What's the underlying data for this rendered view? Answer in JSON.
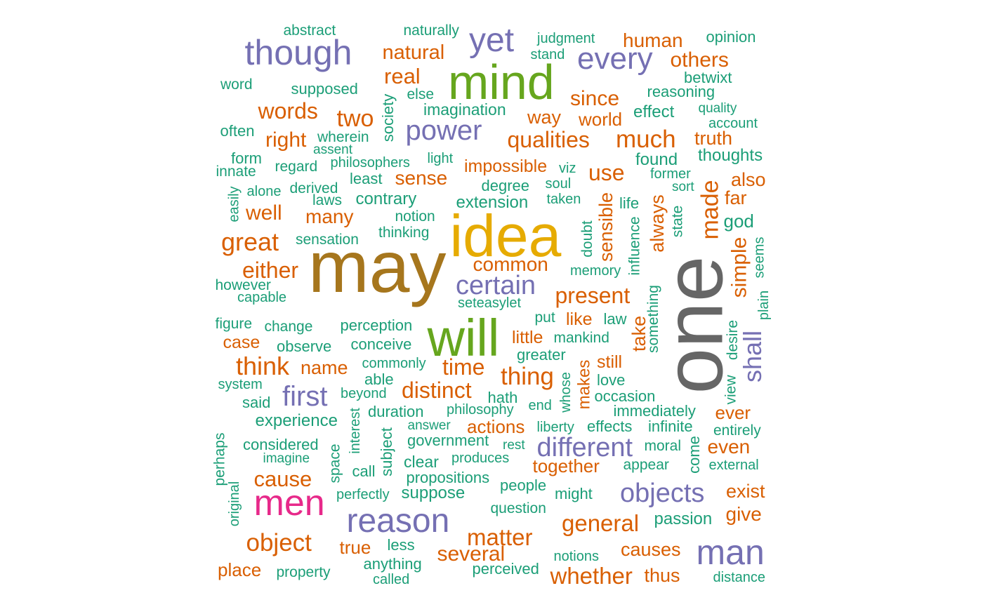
{
  "palette": {
    "teal": "#1b9e77",
    "orange": "#d95f02",
    "purple": "#7570b3",
    "pink": "#e7298a",
    "green": "#66a61e",
    "gold": "#e6ab02",
    "brown": "#a6761d",
    "gray": "#666666"
  },
  "words": [
    {
      "text": "one",
      "color": "gray",
      "rank": 1,
      "vertical": true
    },
    {
      "text": "may",
      "color": "brown",
      "rank": 2,
      "vertical": false
    },
    {
      "text": "idea",
      "color": "gold",
      "rank": 3,
      "vertical": false
    },
    {
      "text": "will",
      "color": "green",
      "rank": 4,
      "vertical": false
    },
    {
      "text": "mind",
      "color": "green",
      "rank": 5,
      "vertical": false
    },
    {
      "text": "men",
      "color": "pink",
      "rank": 6,
      "vertical": false
    },
    {
      "text": "though",
      "color": "purple",
      "rank": 7,
      "vertical": false
    },
    {
      "text": "reason",
      "color": "purple",
      "rank": 8,
      "vertical": false
    },
    {
      "text": "man",
      "color": "purple",
      "rank": 9,
      "vertical": false
    },
    {
      "text": "yet",
      "color": "purple",
      "rank": 10,
      "vertical": false
    },
    {
      "text": "every",
      "color": "purple",
      "rank": 11,
      "vertical": false
    },
    {
      "text": "power",
      "color": "purple",
      "rank": 12,
      "vertical": false
    },
    {
      "text": "different",
      "color": "purple",
      "rank": 13,
      "vertical": false
    },
    {
      "text": "objects",
      "color": "purple",
      "rank": 14,
      "vertical": false
    },
    {
      "text": "certain",
      "color": "purple",
      "rank": 15,
      "vertical": false
    },
    {
      "text": "first",
      "color": "purple",
      "rank": 16,
      "vertical": false
    },
    {
      "text": "shall",
      "color": "purple",
      "rank": 17,
      "vertical": true
    },
    {
      "text": "object",
      "color": "orange",
      "rank": 18,
      "vertical": false
    },
    {
      "text": "general",
      "color": "orange",
      "rank": 19,
      "vertical": false
    },
    {
      "text": "whether",
      "color": "orange",
      "rank": 20,
      "vertical": false
    },
    {
      "text": "matter",
      "color": "orange",
      "rank": 21,
      "vertical": false
    },
    {
      "text": "great",
      "color": "orange",
      "rank": 22,
      "vertical": false
    },
    {
      "text": "think",
      "color": "orange",
      "rank": 23,
      "vertical": false
    },
    {
      "text": "much",
      "color": "orange",
      "rank": 24,
      "vertical": false
    },
    {
      "text": "thing",
      "color": "orange",
      "rank": 25,
      "vertical": false
    },
    {
      "text": "made",
      "color": "orange",
      "rank": 26,
      "vertical": true
    },
    {
      "text": "present",
      "color": "orange",
      "rank": 27,
      "vertical": false
    },
    {
      "text": "two",
      "color": "orange",
      "rank": 28,
      "vertical": false
    },
    {
      "text": "distinct",
      "color": "orange",
      "rank": 29,
      "vertical": false
    },
    {
      "text": "qualities",
      "color": "orange",
      "rank": 30,
      "vertical": false
    },
    {
      "text": "use",
      "color": "orange",
      "rank": 31,
      "vertical": false
    },
    {
      "text": "time",
      "color": "orange",
      "rank": 32,
      "vertical": false
    },
    {
      "text": "either",
      "color": "orange",
      "rank": 33,
      "vertical": false
    },
    {
      "text": "cause",
      "color": "orange",
      "rank": 34,
      "vertical": false
    },
    {
      "text": "several",
      "color": "orange",
      "rank": 35,
      "vertical": false
    },
    {
      "text": "words",
      "color": "orange",
      "rank": 36,
      "vertical": false
    },
    {
      "text": "others",
      "color": "orange",
      "rank": 37,
      "vertical": false
    },
    {
      "text": "simple",
      "color": "orange",
      "rank": 38,
      "vertical": true
    },
    {
      "text": "natural",
      "color": "orange",
      "rank": 39,
      "vertical": false
    },
    {
      "text": "real",
      "color": "orange",
      "rank": 40,
      "vertical": false
    },
    {
      "text": "since",
      "color": "orange",
      "rank": 41,
      "vertical": false
    },
    {
      "text": "human",
      "color": "orange",
      "rank": 42,
      "vertical": false
    },
    {
      "text": "sense",
      "color": "orange",
      "rank": 43,
      "vertical": false
    },
    {
      "text": "impossible",
      "color": "orange",
      "rank": 44,
      "vertical": false
    },
    {
      "text": "common",
      "color": "orange",
      "rank": 45,
      "vertical": false
    },
    {
      "text": "well",
      "color": "orange",
      "rank": 46,
      "vertical": false
    },
    {
      "text": "many",
      "color": "orange",
      "rank": 47,
      "vertical": false
    },
    {
      "text": "right",
      "color": "orange",
      "rank": 48,
      "vertical": false
    },
    {
      "text": "truth",
      "color": "orange",
      "rank": 49,
      "vertical": false
    },
    {
      "text": "way",
      "color": "orange",
      "rank": 50,
      "vertical": false
    },
    {
      "text": "world",
      "color": "orange",
      "rank": 51,
      "vertical": false
    },
    {
      "text": "also",
      "color": "orange",
      "rank": 52,
      "vertical": false
    },
    {
      "text": "far",
      "color": "orange",
      "rank": 53,
      "vertical": false
    },
    {
      "text": "always",
      "color": "orange",
      "rank": 54,
      "vertical": true
    },
    {
      "text": "sensible",
      "color": "orange",
      "rank": 55,
      "vertical": true
    },
    {
      "text": "take",
      "color": "orange",
      "rank": 56,
      "vertical": true
    },
    {
      "text": "makes",
      "color": "orange",
      "rank": 57,
      "vertical": true
    },
    {
      "text": "name",
      "color": "orange",
      "rank": 58,
      "vertical": false
    },
    {
      "text": "case",
      "color": "orange",
      "rank": 59,
      "vertical": false
    },
    {
      "text": "little",
      "color": "orange",
      "rank": 60,
      "vertical": false
    },
    {
      "text": "like",
      "color": "orange",
      "rank": 61,
      "vertical": false
    },
    {
      "text": "still",
      "color": "orange",
      "rank": 62,
      "vertical": false
    },
    {
      "text": "actions",
      "color": "orange",
      "rank": 63,
      "vertical": false
    },
    {
      "text": "together",
      "color": "orange",
      "rank": 64,
      "vertical": false
    },
    {
      "text": "ever",
      "color": "orange",
      "rank": 65,
      "vertical": false
    },
    {
      "text": "even",
      "color": "orange",
      "rank": 66,
      "vertical": false
    },
    {
      "text": "exist",
      "color": "orange",
      "rank": 67,
      "vertical": false
    },
    {
      "text": "give",
      "color": "orange",
      "rank": 68,
      "vertical": false
    },
    {
      "text": "true",
      "color": "orange",
      "rank": 69,
      "vertical": false
    },
    {
      "text": "place",
      "color": "orange",
      "rank": 70,
      "vertical": false
    },
    {
      "text": "causes",
      "color": "orange",
      "rank": 71,
      "vertical": false
    },
    {
      "text": "thus",
      "color": "orange",
      "rank": 72,
      "vertical": false
    },
    {
      "text": "abstract",
      "color": "teal",
      "rank": 73,
      "vertical": false
    },
    {
      "text": "naturally",
      "color": "teal",
      "rank": 74,
      "vertical": false
    },
    {
      "text": "judgment",
      "color": "teal",
      "rank": 75,
      "vertical": false
    },
    {
      "text": "opinion",
      "color": "teal",
      "rank": 76,
      "vertical": false
    },
    {
      "text": "stand",
      "color": "teal",
      "rank": 77,
      "vertical": false
    },
    {
      "text": "word",
      "color": "teal",
      "rank": 78,
      "vertical": false
    },
    {
      "text": "supposed",
      "color": "teal",
      "rank": 79,
      "vertical": false
    },
    {
      "text": "else",
      "color": "teal",
      "rank": 80,
      "vertical": false
    },
    {
      "text": "betwixt",
      "color": "teal",
      "rank": 81,
      "vertical": false
    },
    {
      "text": "reasoning",
      "color": "teal",
      "rank": 82,
      "vertical": false
    },
    {
      "text": "imagination",
      "color": "teal",
      "rank": 83,
      "vertical": false
    },
    {
      "text": "effect",
      "color": "teal",
      "rank": 84,
      "vertical": false
    },
    {
      "text": "quality",
      "color": "teal",
      "rank": 85,
      "vertical": false
    },
    {
      "text": "account",
      "color": "teal",
      "rank": 86,
      "vertical": false
    },
    {
      "text": "often",
      "color": "teal",
      "rank": 87,
      "vertical": false
    },
    {
      "text": "wherein",
      "color": "teal",
      "rank": 88,
      "vertical": false
    },
    {
      "text": "assent",
      "color": "teal",
      "rank": 89,
      "vertical": false
    },
    {
      "text": "society",
      "color": "teal",
      "rank": 90,
      "vertical": true
    },
    {
      "text": "thoughts",
      "color": "teal",
      "rank": 91,
      "vertical": false
    },
    {
      "text": "form",
      "color": "teal",
      "rank": 92,
      "vertical": false
    },
    {
      "text": "regard",
      "color": "teal",
      "rank": 93,
      "vertical": false
    },
    {
      "text": "philosophers",
      "color": "teal",
      "rank": 94,
      "vertical": false
    },
    {
      "text": "light",
      "color": "teal",
      "rank": 95,
      "vertical": false
    },
    {
      "text": "found",
      "color": "teal",
      "rank": 96,
      "vertical": false
    },
    {
      "text": "innate",
      "color": "teal",
      "rank": 97,
      "vertical": false
    },
    {
      "text": "viz",
      "color": "teal",
      "rank": 98,
      "vertical": false
    },
    {
      "text": "former",
      "color": "teal",
      "rank": 99,
      "vertical": false
    },
    {
      "text": "least",
      "color": "teal",
      "rank": 100,
      "vertical": false
    },
    {
      "text": "degree",
      "color": "teal",
      "rank": 101,
      "vertical": false
    },
    {
      "text": "soul",
      "color": "teal",
      "rank": 102,
      "vertical": false
    },
    {
      "text": "sort",
      "color": "teal",
      "rank": 103,
      "vertical": false
    },
    {
      "text": "alone",
      "color": "teal",
      "rank": 104,
      "vertical": false
    },
    {
      "text": "derived",
      "color": "teal",
      "rank": 105,
      "vertical": false
    },
    {
      "text": "easily",
      "color": "teal",
      "rank": 106,
      "vertical": true
    },
    {
      "text": "laws",
      "color": "teal",
      "rank": 107,
      "vertical": false
    },
    {
      "text": "contrary",
      "color": "teal",
      "rank": 108,
      "vertical": false
    },
    {
      "text": "taken",
      "color": "teal",
      "rank": 109,
      "vertical": false
    },
    {
      "text": "extension",
      "color": "teal",
      "rank": 110,
      "vertical": false
    },
    {
      "text": "life",
      "color": "teal",
      "rank": 111,
      "vertical": false
    },
    {
      "text": "state",
      "color": "teal",
      "rank": 112,
      "vertical": true
    },
    {
      "text": "god",
      "color": "teal",
      "rank": 113,
      "vertical": false
    },
    {
      "text": "notion",
      "color": "teal",
      "rank": 114,
      "vertical": false
    },
    {
      "text": "thinking",
      "color": "teal",
      "rank": 115,
      "vertical": false
    },
    {
      "text": "sensation",
      "color": "teal",
      "rank": 116,
      "vertical": false
    },
    {
      "text": "doubt",
      "color": "teal",
      "rank": 117,
      "vertical": true
    },
    {
      "text": "influence",
      "color": "teal",
      "rank": 118,
      "vertical": true
    },
    {
      "text": "memory",
      "color": "teal",
      "rank": 119,
      "vertical": false
    },
    {
      "text": "seems",
      "color": "teal",
      "rank": 120,
      "vertical": true
    },
    {
      "text": "however",
      "color": "teal",
      "rank": 121,
      "vertical": false
    },
    {
      "text": "capable",
      "color": "teal",
      "rank": 122,
      "vertical": false
    },
    {
      "text": "seteasylet",
      "color": "teal",
      "rank": 123,
      "vertical": false
    },
    {
      "text": "something",
      "color": "teal",
      "rank": 124,
      "vertical": true
    },
    {
      "text": "plain",
      "color": "teal",
      "rank": 125,
      "vertical": true
    },
    {
      "text": "put",
      "color": "teal",
      "rank": 126,
      "vertical": false
    },
    {
      "text": "law",
      "color": "teal",
      "rank": 127,
      "vertical": false
    },
    {
      "text": "figure",
      "color": "teal",
      "rank": 128,
      "vertical": false
    },
    {
      "text": "change",
      "color": "teal",
      "rank": 129,
      "vertical": false
    },
    {
      "text": "perception",
      "color": "teal",
      "rank": 130,
      "vertical": false
    },
    {
      "text": "mankind",
      "color": "teal",
      "rank": 131,
      "vertical": false
    },
    {
      "text": "desire",
      "color": "teal",
      "rank": 132,
      "vertical": true
    },
    {
      "text": "observe",
      "color": "teal",
      "rank": 133,
      "vertical": false
    },
    {
      "text": "conceive",
      "color": "teal",
      "rank": 134,
      "vertical": false
    },
    {
      "text": "greater",
      "color": "teal",
      "rank": 135,
      "vertical": false
    },
    {
      "text": "commonly",
      "color": "teal",
      "rank": 136,
      "vertical": false
    },
    {
      "text": "whose",
      "color": "teal",
      "rank": 137,
      "vertical": true
    },
    {
      "text": "system",
      "color": "teal",
      "rank": 138,
      "vertical": false
    },
    {
      "text": "able",
      "color": "teal",
      "rank": 139,
      "vertical": false
    },
    {
      "text": "love",
      "color": "teal",
      "rank": 140,
      "vertical": false
    },
    {
      "text": "view",
      "color": "teal",
      "rank": 141,
      "vertical": true
    },
    {
      "text": "said",
      "color": "teal",
      "rank": 142,
      "vertical": false
    },
    {
      "text": "beyond",
      "color": "teal",
      "rank": 143,
      "vertical": false
    },
    {
      "text": "hath",
      "color": "teal",
      "rank": 144,
      "vertical": false
    },
    {
      "text": "occasion",
      "color": "teal",
      "rank": 145,
      "vertical": false
    },
    {
      "text": "duration",
      "color": "teal",
      "rank": 146,
      "vertical": false
    },
    {
      "text": "philosophy",
      "color": "teal",
      "rank": 147,
      "vertical": false
    },
    {
      "text": "end",
      "color": "teal",
      "rank": 148,
      "vertical": false
    },
    {
      "text": "immediately",
      "color": "teal",
      "rank": 149,
      "vertical": false
    },
    {
      "text": "interest",
      "color": "teal",
      "rank": 150,
      "vertical": true
    },
    {
      "text": "experience",
      "color": "teal",
      "rank": 151,
      "vertical": false
    },
    {
      "text": "answer",
      "color": "teal",
      "rank": 152,
      "vertical": false
    },
    {
      "text": "liberty",
      "color": "teal",
      "rank": 153,
      "vertical": false
    },
    {
      "text": "effects",
      "color": "teal",
      "rank": 154,
      "vertical": false
    },
    {
      "text": "infinite",
      "color": "teal",
      "rank": 155,
      "vertical": false
    },
    {
      "text": "perhaps",
      "color": "teal",
      "rank": 156,
      "vertical": true
    },
    {
      "text": "subject",
      "color": "teal",
      "rank": 157,
      "vertical": true
    },
    {
      "text": "entirely",
      "color": "teal",
      "rank": 158,
      "vertical": false
    },
    {
      "text": "government",
      "color": "teal",
      "rank": 159,
      "vertical": false
    },
    {
      "text": "considered",
      "color": "teal",
      "rank": 160,
      "vertical": false
    },
    {
      "text": "rest",
      "color": "teal",
      "rank": 161,
      "vertical": false
    },
    {
      "text": "moral",
      "color": "teal",
      "rank": 162,
      "vertical": false
    },
    {
      "text": "come",
      "color": "teal",
      "rank": 163,
      "vertical": true
    },
    {
      "text": "space",
      "color": "teal",
      "rank": 164,
      "vertical": true
    },
    {
      "text": "imagine",
      "color": "teal",
      "rank": 165,
      "vertical": false
    },
    {
      "text": "produces",
      "color": "teal",
      "rank": 166,
      "vertical": false
    },
    {
      "text": "clear",
      "color": "teal",
      "rank": 167,
      "vertical": false
    },
    {
      "text": "appear",
      "color": "teal",
      "rank": 168,
      "vertical": false
    },
    {
      "text": "external",
      "color": "teal",
      "rank": 169,
      "vertical": false
    },
    {
      "text": "call",
      "color": "teal",
      "rank": 170,
      "vertical": false
    },
    {
      "text": "original",
      "color": "teal",
      "rank": 171,
      "vertical": true
    },
    {
      "text": "propositions",
      "color": "teal",
      "rank": 172,
      "vertical": false
    },
    {
      "text": "people",
      "color": "teal",
      "rank": 173,
      "vertical": false
    },
    {
      "text": "might",
      "color": "teal",
      "rank": 174,
      "vertical": false
    },
    {
      "text": "perfectly",
      "color": "teal",
      "rank": 175,
      "vertical": false
    },
    {
      "text": "suppose",
      "color": "teal",
      "rank": 176,
      "vertical": false
    },
    {
      "text": "question",
      "color": "teal",
      "rank": 177,
      "vertical": false
    },
    {
      "text": "passion",
      "color": "teal",
      "rank": 178,
      "vertical": false
    },
    {
      "text": "less",
      "color": "teal",
      "rank": 179,
      "vertical": false
    },
    {
      "text": "anything",
      "color": "teal",
      "rank": 180,
      "vertical": false
    },
    {
      "text": "notions",
      "color": "teal",
      "rank": 181,
      "vertical": false
    },
    {
      "text": "perceived",
      "color": "teal",
      "rank": 182,
      "vertical": false
    },
    {
      "text": "property",
      "color": "teal",
      "rank": 183,
      "vertical": false
    },
    {
      "text": "called",
      "color": "teal",
      "rank": 184,
      "vertical": false
    },
    {
      "text": "distance",
      "color": "teal",
      "rank": 185,
      "vertical": false
    }
  ]
}
